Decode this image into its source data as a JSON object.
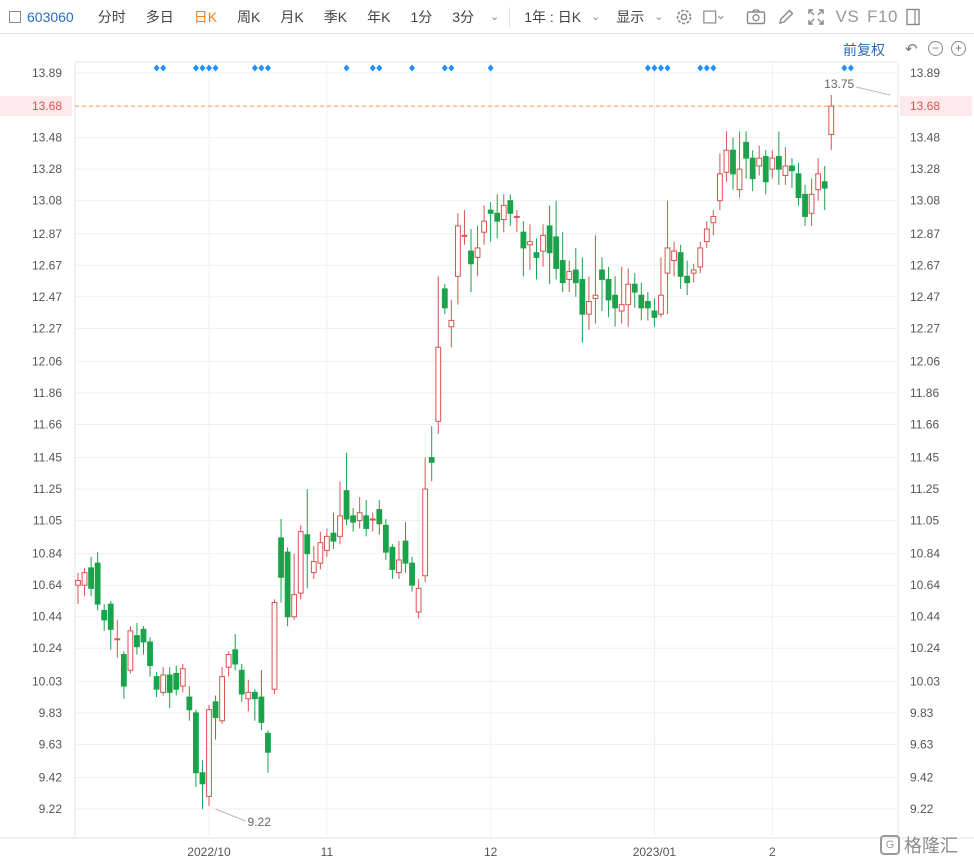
{
  "toolbar": {
    "code": "603060",
    "items": [
      "分时",
      "多日",
      "日K",
      "周K",
      "月K",
      "季K",
      "年K",
      "1分",
      "3分"
    ],
    "active": "日K",
    "period_select": "1年 : 日K",
    "display_label": "显示",
    "vs_label": "VS",
    "f10_label": "F10"
  },
  "adjust_label": "前复权",
  "watermark": "格隆汇",
  "colors": {
    "up": "#d9534f",
    "down": "#1aa34a",
    "marker": "#1e90ff",
    "current_line": "#f0a050",
    "current_badge": "#fde9ec"
  },
  "chart_data": {
    "type": "candlestick",
    "ylim": [
      9.12,
      13.99
    ],
    "y_ticks": [
      "13.89",
      "13.68",
      "13.48",
      "13.28",
      "13.08",
      "12.87",
      "12.67",
      "12.47",
      "12.27",
      "12.06",
      "11.86",
      "11.66",
      "11.45",
      "11.25",
      "11.05",
      "10.84",
      "10.64",
      "10.44",
      "10.24",
      "10.03",
      "9.83",
      "9.63",
      "9.42",
      "9.22"
    ],
    "x_labels": [
      {
        "label": "2022/10",
        "index": 20
      },
      {
        "label": "11",
        "index": 38
      },
      {
        "label": "12",
        "index": 63
      },
      {
        "label": "2023/01",
        "index": 88
      },
      {
        "label": "2",
        "index": 106
      }
    ],
    "current_price": "13.68",
    "max_label": {
      "value": "13.75",
      "index": 124
    },
    "min_label": {
      "value": "9.22",
      "index": 21
    },
    "ohlc": [
      [
        10.64,
        10.67,
        10.52,
        10.72
      ],
      [
        10.64,
        10.72,
        10.57,
        10.75
      ],
      [
        10.75,
        10.62,
        10.57,
        10.82
      ],
      [
        10.78,
        10.52,
        10.48,
        10.85
      ],
      [
        10.48,
        10.42,
        10.35,
        10.52
      ],
      [
        10.52,
        10.36,
        10.23,
        10.54
      ],
      [
        10.3,
        10.3,
        10.18,
        10.42
      ],
      [
        10.2,
        10.0,
        9.92,
        10.22
      ],
      [
        10.1,
        10.35,
        10.08,
        10.38
      ],
      [
        10.32,
        10.25,
        10.2,
        10.4
      ],
      [
        10.36,
        10.28,
        10.2,
        10.38
      ],
      [
        10.28,
        10.13,
        10.06,
        10.31
      ],
      [
        10.06,
        9.98,
        9.93,
        10.09
      ],
      [
        9.96,
        10.07,
        9.94,
        10.12
      ],
      [
        10.07,
        9.96,
        9.86,
        10.12
      ],
      [
        10.08,
        9.98,
        9.94,
        10.13
      ],
      [
        10.0,
        10.11,
        9.96,
        10.14
      ],
      [
        9.93,
        9.85,
        9.78,
        10.0
      ],
      [
        9.83,
        9.45,
        9.36,
        9.85
      ],
      [
        9.45,
        9.38,
        9.22,
        9.53
      ],
      [
        9.3,
        9.85,
        9.24,
        9.88
      ],
      [
        9.9,
        9.8,
        9.66,
        9.94
      ],
      [
        9.78,
        10.06,
        9.76,
        10.12
      ],
      [
        10.12,
        10.2,
        10.06,
        10.22
      ],
      [
        10.23,
        10.14,
        10.1,
        10.33
      ],
      [
        10.1,
        9.95,
        9.9,
        10.14
      ],
      [
        9.92,
        9.96,
        9.84,
        10.04
      ],
      [
        9.96,
        9.92,
        9.78,
        9.98
      ],
      [
        9.93,
        9.77,
        9.72,
        10.1
      ],
      [
        9.7,
        9.58,
        9.45,
        9.72
      ],
      [
        9.98,
        10.53,
        9.95,
        10.55
      ],
      [
        10.94,
        10.69,
        10.53,
        11.06
      ],
      [
        10.85,
        10.44,
        10.38,
        10.88
      ],
      [
        10.44,
        10.58,
        10.42,
        10.84
      ],
      [
        10.59,
        10.98,
        10.55,
        11.02
      ],
      [
        10.96,
        10.84,
        10.62,
        11.25
      ],
      [
        10.72,
        10.79,
        10.68,
        10.89
      ],
      [
        10.78,
        10.91,
        10.74,
        10.98
      ],
      [
        10.86,
        10.95,
        10.82,
        11.0
      ],
      [
        10.97,
        10.92,
        10.87,
        11.1
      ],
      [
        10.95,
        11.08,
        10.9,
        11.3
      ],
      [
        11.24,
        11.06,
        11.02,
        11.48
      ],
      [
        11.08,
        11.04,
        10.98,
        11.13
      ],
      [
        11.05,
        11.1,
        11.0,
        11.2
      ],
      [
        11.08,
        11.0,
        10.95,
        11.18
      ],
      [
        11.06,
        11.06,
        10.98,
        11.1
      ],
      [
        11.12,
        11.03,
        10.96,
        11.18
      ],
      [
        11.02,
        10.85,
        10.8,
        11.06
      ],
      [
        10.88,
        10.74,
        10.68,
        10.9
      ],
      [
        10.72,
        10.8,
        10.68,
        10.92
      ],
      [
        10.92,
        10.78,
        10.72,
        11.04
      ],
      [
        10.78,
        10.64,
        10.6,
        10.82
      ],
      [
        10.47,
        10.62,
        10.43,
        10.68
      ],
      [
        10.7,
        11.25,
        10.66,
        11.45
      ],
      [
        11.45,
        11.42,
        11.3,
        11.65
      ],
      [
        11.68,
        12.15,
        11.6,
        12.6
      ],
      [
        12.52,
        12.4,
        12.36,
        12.55
      ],
      [
        12.28,
        12.32,
        12.15,
        12.45
      ],
      [
        12.6,
        12.92,
        12.42,
        13.0
      ],
      [
        12.86,
        12.86,
        12.8,
        13.02
      ],
      [
        12.76,
        12.68,
        12.5,
        12.9
      ],
      [
        12.72,
        12.78,
        12.6,
        12.92
      ],
      [
        12.88,
        12.95,
        12.8,
        13.05
      ],
      [
        13.02,
        13.0,
        12.82,
        13.07
      ],
      [
        13.0,
        12.95,
        12.84,
        13.12
      ],
      [
        12.96,
        13.05,
        12.88,
        13.12
      ],
      [
        13.08,
        13.0,
        12.92,
        13.12
      ],
      [
        12.98,
        12.98,
        12.88,
        13.02
      ],
      [
        12.88,
        12.78,
        12.6,
        12.95
      ],
      [
        12.8,
        12.82,
        12.64,
        12.93
      ],
      [
        12.75,
        12.72,
        12.58,
        12.84
      ],
      [
        12.76,
        12.86,
        12.66,
        12.93
      ],
      [
        12.92,
        12.75,
        12.55,
        13.05
      ],
      [
        12.85,
        12.65,
        12.58,
        13.08
      ],
      [
        12.7,
        12.56,
        12.5,
        12.88
      ],
      [
        12.58,
        12.63,
        12.5,
        12.7
      ],
      [
        12.64,
        12.56,
        12.47,
        12.78
      ],
      [
        12.58,
        12.36,
        12.18,
        12.72
      ],
      [
        12.36,
        12.44,
        12.26,
        12.6
      ],
      [
        12.46,
        12.48,
        12.3,
        12.86
      ],
      [
        12.64,
        12.58,
        12.38,
        12.72
      ],
      [
        12.58,
        12.45,
        12.34,
        12.66
      ],
      [
        12.48,
        12.4,
        12.28,
        12.6
      ],
      [
        12.38,
        12.42,
        12.3,
        12.66
      ],
      [
        12.42,
        12.55,
        12.28,
        12.65
      ],
      [
        12.55,
        12.5,
        12.4,
        12.62
      ],
      [
        12.48,
        12.4,
        12.32,
        12.56
      ],
      [
        12.44,
        12.4,
        12.32,
        12.5
      ],
      [
        12.38,
        12.34,
        12.28,
        12.46
      ],
      [
        12.36,
        12.48,
        12.34,
        12.72
      ],
      [
        12.62,
        12.78,
        12.36,
        13.08
      ],
      [
        12.7,
        12.76,
        12.6,
        12.82
      ],
      [
        12.75,
        12.6,
        12.52,
        12.8
      ],
      [
        12.6,
        12.56,
        12.48,
        12.7
      ],
      [
        12.62,
        12.64,
        12.56,
        12.68
      ],
      [
        12.66,
        12.78,
        12.62,
        12.82
      ],
      [
        12.82,
        12.9,
        12.78,
        12.95
      ],
      [
        12.94,
        12.98,
        12.86,
        13.02
      ],
      [
        13.08,
        13.25,
        13.02,
        13.38
      ],
      [
        13.26,
        13.4,
        13.2,
        13.52
      ],
      [
        13.4,
        13.25,
        13.15,
        13.48
      ],
      [
        13.15,
        13.28,
        13.1,
        13.52
      ],
      [
        13.45,
        13.35,
        13.22,
        13.52
      ],
      [
        13.35,
        13.22,
        13.14,
        13.4
      ],
      [
        13.3,
        13.35,
        13.24,
        13.43
      ],
      [
        13.36,
        13.2,
        13.12,
        13.4
      ],
      [
        13.28,
        13.35,
        13.22,
        13.4
      ],
      [
        13.36,
        13.28,
        13.18,
        13.52
      ],
      [
        13.24,
        13.3,
        13.18,
        13.42
      ],
      [
        13.3,
        13.27,
        13.16,
        13.35
      ],
      [
        13.25,
        13.1,
        13.05,
        13.32
      ],
      [
        13.12,
        12.98,
        12.92,
        13.18
      ],
      [
        13.0,
        13.12,
        12.92,
        13.22
      ],
      [
        13.15,
        13.25,
        13.08,
        13.35
      ],
      [
        13.2,
        13.16,
        13.02,
        13.3
      ],
      [
        13.5,
        13.68,
        13.4,
        13.75
      ]
    ],
    "markers": [
      12,
      13,
      18,
      19,
      20,
      21,
      27,
      28,
      29,
      41,
      45,
      46,
      51,
      56,
      57,
      63,
      87,
      88,
      89,
      90,
      95,
      96,
      97,
      117,
      118
    ]
  }
}
